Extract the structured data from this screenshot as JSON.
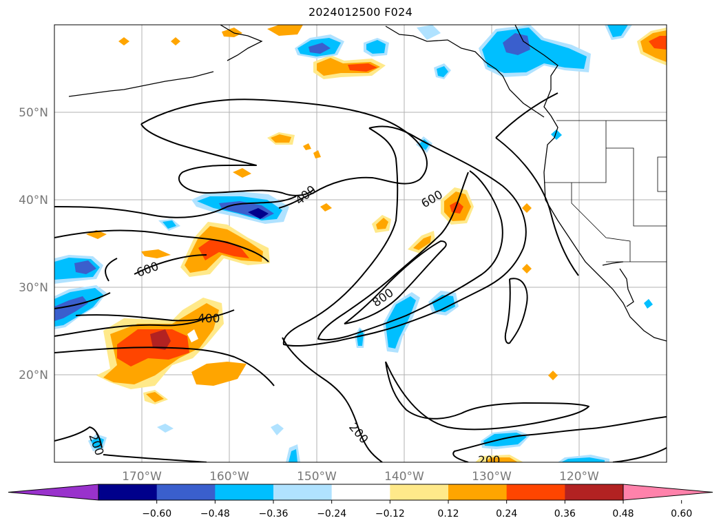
{
  "title": "2024012500 F024",
  "map": {
    "lat_labels": [
      "50°N",
      "40°N",
      "30°N",
      "20°N"
    ],
    "lon_labels": [
      "170°W",
      "160°W",
      "150°W",
      "140°W",
      "130°W",
      "120°W"
    ],
    "contour_labels": [
      "400",
      "600",
      "800",
      "600",
      "400",
      "200",
      "200",
      "200"
    ],
    "gridlines": true
  },
  "colorbar": {
    "colors": [
      "#9932cc",
      "#00008b",
      "#3a5fcd",
      "#00bfff",
      "#b0e2ff",
      "#ffffff",
      "#ffe98a",
      "#ffa500",
      "#ff4500",
      "#b22222",
      "#ff82ab"
    ],
    "tick_labels": [
      "−0.60",
      "−0.48",
      "−0.36",
      "−0.24",
      "−0.12",
      "0.12",
      "0.24",
      "0.36",
      "0.48",
      "0.60"
    ]
  }
}
